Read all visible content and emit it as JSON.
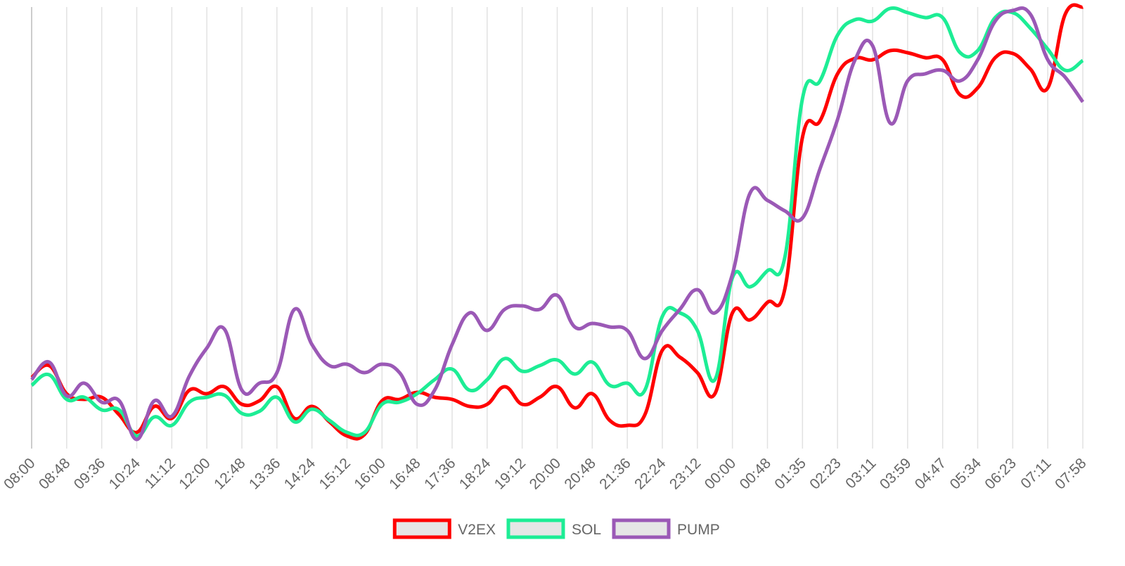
{
  "chart_data": {
    "type": "line",
    "categories": [
      "08:00",
      null,
      "08:48",
      null,
      "09:36",
      null,
      "10:24",
      null,
      "11:12",
      null,
      "12:00",
      null,
      "12:48",
      null,
      "13:36",
      null,
      "14:24",
      null,
      "15:12",
      null,
      "16:00",
      null,
      "16:48",
      null,
      "17:36",
      null,
      "18:24",
      null,
      "19:12",
      null,
      "20:00",
      null,
      "20:48",
      null,
      "21:36",
      null,
      "22:24",
      null,
      "23:12",
      null,
      "00:00",
      null,
      "00:48",
      null,
      "01:35",
      null,
      "02:23",
      null,
      "03:11",
      null,
      "03:59",
      null,
      "04:47",
      null,
      "05:34",
      null,
      "06:23",
      null,
      "07:11",
      null,
      "07:58"
    ],
    "series": [
      {
        "name": "V2EX",
        "color": "#ff0000",
        "values": [
          93,
          110,
          70,
          62,
          65,
          40,
          15,
          52,
          35,
          75,
          70,
          80,
          55,
          60,
          80,
          35,
          52,
          30,
          10,
          12,
          60,
          62,
          72,
          65,
          62,
          52,
          55,
          80,
          55,
          65,
          80,
          50,
          70,
          32,
          25,
          40,
          132,
          122,
          100,
          70,
          185,
          175,
          200,
          220,
          435,
          458,
          525,
          547,
          545,
          558,
          555,
          548,
          545,
          495,
          505,
          548,
          554,
          532,
          505,
          610,
          620
        ]
      },
      {
        "name": "SOL",
        "color": "#1ded95",
        "values": [
          82,
          97,
          62,
          65,
          47,
          47,
          10,
          37,
          25,
          58,
          65,
          68,
          42,
          45,
          65,
          30,
          48,
          32,
          15,
          15,
          55,
          58,
          70,
          90,
          105,
          75,
          90,
          120,
          102,
          110,
          118,
          98,
          115,
          82,
          85,
          75,
          180,
          185,
          160,
          90,
          235,
          222,
          245,
          265,
          490,
          515,
          580,
          602,
          600,
          618,
          612,
          605,
          605,
          555,
          558,
          605,
          612,
          590,
          560,
          530,
          544
        ]
      },
      {
        "name": "PUMP",
        "color": "#9b59b6",
        "values": [
          90,
          115,
          67,
          85,
          58,
          60,
          5,
          60,
          38,
          95,
          135,
          162,
          75,
          85,
          100,
          190,
          140,
          110,
          112,
          100,
          112,
          100,
          55,
          75,
          140,
          185,
          160,
          190,
          195,
          190,
          210,
          165,
          170,
          165,
          160,
          120,
          160,
          190,
          218,
          185,
          240,
          355,
          345,
          330,
          320,
          390,
          460,
          545,
          565,
          455,
          515,
          525,
          530,
          515,
          545,
          600,
          615,
          610,
          545,
          520,
          485
        ]
      }
    ],
    "ylim": [
      0,
      620
    ],
    "grid": true,
    "legend": "bottom"
  }
}
